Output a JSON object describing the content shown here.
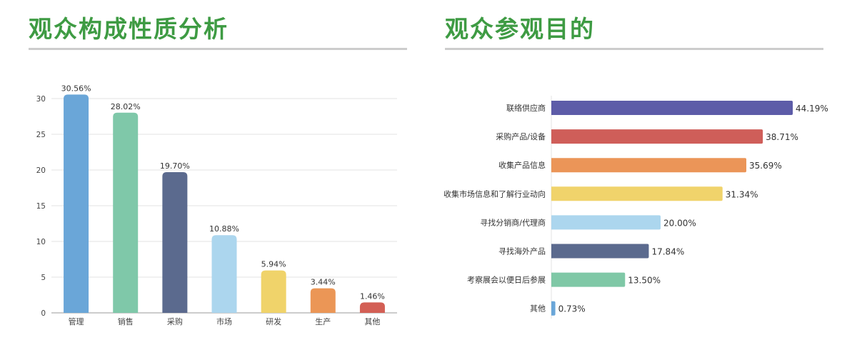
{
  "left_panel": {
    "title": "观众构成性质分析"
  },
  "right_panel": {
    "title": "观众参观目的"
  },
  "chart_data": [
    {
      "type": "bar",
      "title": "观众构成性质分析",
      "categories": [
        "管理",
        "销售",
        "采购",
        "市场",
        "研发",
        "生产",
        "其他"
      ],
      "values": [
        30.56,
        28.02,
        19.7,
        10.88,
        5.94,
        3.44,
        1.46
      ],
      "data_labels": [
        "30.56%",
        "28.02%",
        "19.70%",
        "10.88%",
        "5.94%",
        "3.44%",
        "1.46%"
      ],
      "colors": [
        "#6aa6d8",
        "#7fc8a9",
        "#5b6a8e",
        "#acd6ee",
        "#f0d36a",
        "#eb9656",
        "#d35f55"
      ],
      "yticks": [
        "0",
        "5",
        "10",
        "15",
        "20",
        "25",
        "30"
      ],
      "ylim": [
        0,
        30
      ],
      "grid": true
    },
    {
      "type": "bar",
      "orientation": "horizontal",
      "title": "观众参观目的",
      "categories": [
        "联络供应商",
        "采购产品/设备",
        "收集产品信息",
        "收集市场信息和了解行业动向",
        "寻找分销商/代理商",
        "寻找海外产品",
        "考察展会以便日后参展",
        "其他"
      ],
      "values": [
        44.19,
        38.71,
        35.69,
        31.34,
        20.0,
        17.84,
        13.5,
        0.73
      ],
      "data_labels": [
        "44.19%",
        "38.71%",
        "35.69%",
        "31.34%",
        "20.00%",
        "17.84%",
        "13.50%",
        "0.73%"
      ],
      "colors": [
        "#5d5ca8",
        "#cf5e59",
        "#eb9558",
        "#f0d36b",
        "#acd6ee",
        "#5b6a8e",
        "#7fc8a6",
        "#6aa6d8"
      ],
      "grid": false
    }
  ]
}
